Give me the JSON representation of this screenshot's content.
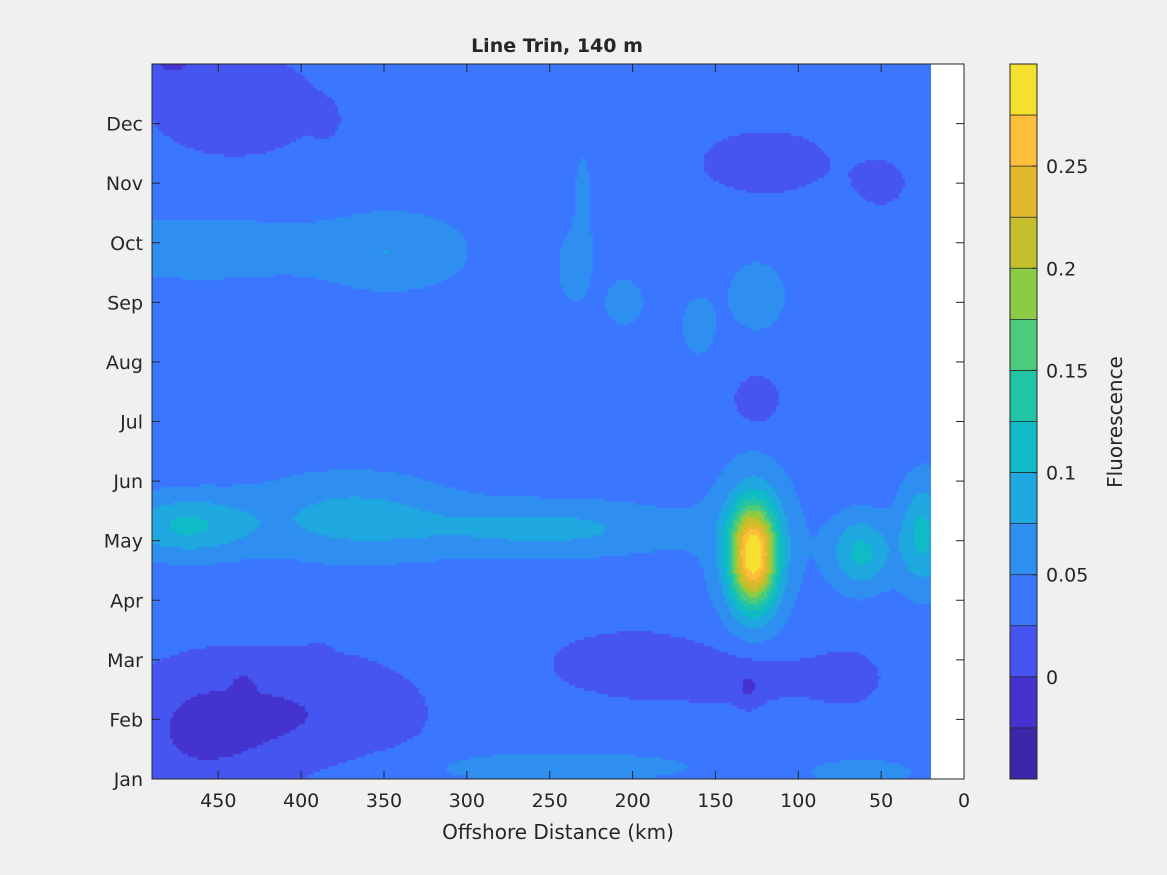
{
  "chart_data": {
    "type": "contourf",
    "title": "Line Trin, 140 m",
    "xlabel": "Offshore Distance (km)",
    "ylabel": "",
    "x_reversed": true,
    "xlim": [
      0,
      490
    ],
    "x_ticks": [
      450,
      400,
      350,
      300,
      250,
      200,
      150,
      100,
      50,
      0
    ],
    "data_x_range": [
      20,
      490
    ],
    "y_categories": [
      "Jan",
      "Feb",
      "Mar",
      "Apr",
      "May",
      "Jun",
      "Jul",
      "Aug",
      "Sep",
      "Oct",
      "Nov",
      "Dec"
    ],
    "colorbar": {
      "label": "Fluorescence",
      "range": [
        -0.05,
        0.3
      ],
      "ticks": [
        0,
        0.05,
        0.1,
        0.15,
        0.2,
        0.25
      ],
      "tick_labels": [
        "0",
        "0.05",
        "0.1",
        "0.15",
        "0.2",
        "0.25"
      ],
      "levels": [
        -0.05,
        -0.025,
        0,
        0.025,
        0.05,
        0.075,
        0.1,
        0.125,
        0.15,
        0.175,
        0.2,
        0.225,
        0.25,
        0.275,
        0.3
      ],
      "colors": [
        "#3e26a8",
        "#4433ce",
        "#4755f0",
        "#3b76ff",
        "#2e8ff1",
        "#1ea8df",
        "#0fbbc7",
        "#21c4a4",
        "#4ccb7d",
        "#8ccb45",
        "#c3c02c",
        "#e2b82f",
        "#fdbe3c",
        "#f5e02e"
      ]
    },
    "field": {
      "background_level": 3,
      "features": [
        {
          "x": 440,
          "month": 11.3,
          "sx": 55,
          "sy": 0.9,
          "amp": -0.03
        },
        {
          "x": 480,
          "month": 12.0,
          "sx": 22,
          "sy": 0.3,
          "amp": -0.03
        },
        {
          "x": 385,
          "month": 11.05,
          "sx": 8,
          "sy": 0.3,
          "amp": -0.015
        },
        {
          "x": 120,
          "month": 10.35,
          "sx": 40,
          "sy": 0.55,
          "amp": -0.03
        },
        {
          "x": 50,
          "month": 10.0,
          "sx": 20,
          "sy": 0.5,
          "amp": -0.02
        },
        {
          "x": 460,
          "month": 8.9,
          "sx": 70,
          "sy": 0.5,
          "amp": 0.035
        },
        {
          "x": 345,
          "month": 8.85,
          "sx": 45,
          "sy": 0.65,
          "amp": 0.035
        },
        {
          "x": 230,
          "month": 9.6,
          "sx": 5,
          "sy": 0.9,
          "amp": 0.03
        },
        {
          "x": 235,
          "month": 8.6,
          "sx": 10,
          "sy": 0.6,
          "amp": 0.03
        },
        {
          "x": 205,
          "month": 8.0,
          "sx": 12,
          "sy": 0.4,
          "amp": 0.03
        },
        {
          "x": 125,
          "month": 8.1,
          "sx": 18,
          "sy": 0.6,
          "amp": 0.03
        },
        {
          "x": 160,
          "month": 7.6,
          "sx": 10,
          "sy": 0.5,
          "amp": 0.03
        },
        {
          "x": 125,
          "month": 6.35,
          "sx": 15,
          "sy": 0.45,
          "amp": -0.03
        },
        {
          "x": 470,
          "month": 4.25,
          "sx": 40,
          "sy": 0.5,
          "amp": 0.065
        },
        {
          "x": 370,
          "month": 4.4,
          "sx": 60,
          "sy": 0.7,
          "amp": 0.045
        },
        {
          "x": 250,
          "month": 4.2,
          "sx": 80,
          "sy": 0.45,
          "amp": 0.045
        },
        {
          "x": 127,
          "month": 3.75,
          "sx": 14,
          "sy": 0.85,
          "amp": 0.24
        },
        {
          "x": 127,
          "month": 4.0,
          "sx": 30,
          "sy": 1.4,
          "amp": 0.03
        },
        {
          "x": 62,
          "month": 3.8,
          "sx": 18,
          "sy": 0.6,
          "amp": 0.07
        },
        {
          "x": 25,
          "month": 4.1,
          "sx": 14,
          "sy": 0.9,
          "amp": 0.07
        },
        {
          "x": 400,
          "month": 1.1,
          "sx": 75,
          "sy": 1.05,
          "amp": -0.035
        },
        {
          "x": 465,
          "month": 0.7,
          "sx": 45,
          "sy": 1.2,
          "amp": -0.03
        },
        {
          "x": 200,
          "month": 1.95,
          "sx": 50,
          "sy": 0.55,
          "amp": -0.03
        },
        {
          "x": 130,
          "month": 1.7,
          "sx": 60,
          "sy": 0.45,
          "amp": -0.025
        },
        {
          "x": 70,
          "month": 1.7,
          "sx": 20,
          "sy": 0.5,
          "amp": -0.02
        },
        {
          "x": 130,
          "month": 1.45,
          "sx": 8,
          "sy": 0.3,
          "amp": -0.02
        },
        {
          "x": 435,
          "month": 1.55,
          "sx": 6,
          "sy": 0.25,
          "amp": -0.015
        },
        {
          "x": 390,
          "month": 2.1,
          "sx": 6,
          "sy": 0.15,
          "amp": -0.015
        },
        {
          "x": 250,
          "month": 0.2,
          "sx": 100,
          "sy": 0.3,
          "amp": 0.025
        },
        {
          "x": 60,
          "month": 0.1,
          "sx": 40,
          "sy": 0.3,
          "amp": 0.02
        }
      ]
    }
  }
}
